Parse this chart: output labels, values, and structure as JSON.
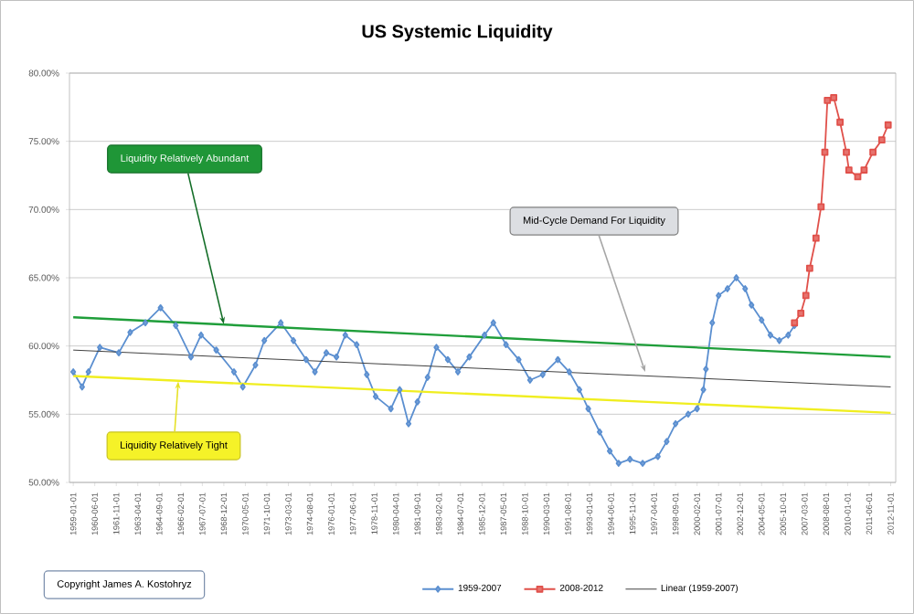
{
  "chart_data": {
    "type": "line",
    "title": "US Systemic Liquidity",
    "series": [
      {
        "name": "1959-2007",
        "color": "#5b8fd0",
        "marker": "diamond",
        "x": [
          "1959-01",
          "1959-08",
          "1960-01",
          "1960-10",
          "1962-01",
          "1962-10",
          "1963-10",
          "1964-10",
          "1965-10",
          "1966-10",
          "1967-06",
          "1968-06",
          "1969-08",
          "1970-03",
          "1971-01",
          "1971-08",
          "1972-09",
          "1973-07",
          "1974-05",
          "1974-12",
          "1975-09",
          "1976-05",
          "1976-12",
          "1977-09",
          "1978-05",
          "1978-12",
          "1979-12",
          "1980-07",
          "1981-02",
          "1981-09",
          "1982-05",
          "1982-12",
          "1983-09",
          "1984-05",
          "1985-02",
          "1986-02",
          "1986-09",
          "1987-07",
          "1988-05",
          "1989-02",
          "1989-12",
          "1990-12",
          "1991-09",
          "1992-05",
          "1992-12",
          "1993-09",
          "1994-05",
          "1994-12",
          "1995-09",
          "1996-07",
          "1997-07",
          "1998-02",
          "1998-09",
          "1999-07",
          "2000-02",
          "2000-07",
          "2000-09",
          "2001-02",
          "2001-07",
          "2002-02",
          "2002-09",
          "2003-04",
          "2003-09",
          "2004-05",
          "2004-12",
          "2005-07",
          "2006-02",
          "2006-07"
        ],
        "values": [
          58.1,
          57.0,
          58.1,
          59.9,
          59.5,
          61.0,
          61.7,
          62.8,
          61.5,
          59.2,
          60.8,
          59.7,
          58.1,
          57.0,
          58.6,
          60.4,
          61.7,
          60.4,
          59.0,
          58.1,
          59.5,
          59.2,
          60.8,
          60.1,
          57.9,
          56.3,
          55.4,
          56.8,
          54.3,
          55.9,
          57.7,
          59.9,
          59.0,
          58.1,
          59.2,
          60.8,
          61.7,
          60.1,
          59.0,
          57.5,
          57.9,
          59.0,
          58.1,
          56.8,
          55.4,
          53.7,
          52.3,
          51.4,
          51.7,
          51.4,
          51.9,
          53.0,
          54.3,
          55.0,
          55.4,
          56.8,
          58.3,
          61.7,
          63.7,
          64.2,
          65.0,
          64.2,
          63.0,
          61.9,
          60.8,
          60.4,
          60.8,
          61.5
        ]
      },
      {
        "name": "2008-2012",
        "color": "#e0504a",
        "marker": "square",
        "x": [
          "2006-07",
          "2006-12",
          "2007-04",
          "2007-07",
          "2007-12",
          "2008-04",
          "2008-07",
          "2008-09",
          "2009-02",
          "2009-07",
          "2009-12",
          "2010-02",
          "2010-09",
          "2011-02",
          "2011-09",
          "2012-04",
          "2012-09"
        ],
        "values": [
          61.7,
          62.4,
          63.7,
          65.7,
          67.9,
          70.2,
          74.2,
          78.0,
          78.2,
          76.4,
          74.2,
          72.9,
          72.4,
          72.9,
          74.2,
          75.1,
          76.2
        ]
      },
      {
        "name": "Linear (1959-2007)",
        "color": "#404040",
        "marker": "none",
        "x": [
          "1959-01",
          "2012-11"
        ],
        "values": [
          59.7,
          57.0
        ]
      },
      {
        "color": "#1f9e3a",
        "marker": "none",
        "x": [
          "1959-01",
          "2012-11"
        ],
        "values": [
          62.1,
          59.2
        ]
      },
      {
        "color": "#f0ee20",
        "marker": "none",
        "x": [
          "1959-01",
          "2012-11"
        ],
        "values": [
          57.8,
          55.1
        ]
      }
    ],
    "xlim": [
      "1958-10-01",
      "2013-03-01"
    ],
    "xticks": [
      {
        "value": "1959-01-01",
        "label": "1959-01-01"
      },
      {
        "value": "1960-06-01",
        "label": "1960-06-01"
      },
      {
        "value": "1961-11-01",
        "label": "1961-11-01"
      },
      {
        "value": "1963-04-01",
        "label": "1963-04-01"
      },
      {
        "value": "1964-09-01",
        "label": "1964-09-01"
      },
      {
        "value": "1966-02-01",
        "label": "1966-02-01"
      },
      {
        "value": "1967-07-01",
        "label": "1967-07-01"
      },
      {
        "value": "1968-12-01",
        "label": "1968-12-01"
      },
      {
        "value": "1970-05-01",
        "label": "1970-05-01"
      },
      {
        "value": "1971-10-01",
        "label": "1971-10-01"
      },
      {
        "value": "1973-03-01",
        "label": "1973-03-01"
      },
      {
        "value": "1974-08-01",
        "label": "1974-08-01"
      },
      {
        "value": "1976-01-01",
        "label": "1976-01-01"
      },
      {
        "value": "1977-06-01",
        "label": "1977-06-01"
      },
      {
        "value": "1978-11-01",
        "label": "1978-11-01"
      },
      {
        "value": "1980-04-01",
        "label": "1980-04-01"
      },
      {
        "value": "1981-09-01",
        "label": "1981-09-01"
      },
      {
        "value": "1983-02-01",
        "label": "1983-02-01"
      },
      {
        "value": "1984-07-01",
        "label": "1984-07-01"
      },
      {
        "value": "1985-12-01",
        "label": "1985-12-01"
      },
      {
        "value": "1987-05-01",
        "label": "1987-05-01"
      },
      {
        "value": "1988-10-01",
        "label": "1988-10-01"
      },
      {
        "value": "1990-03-01",
        "label": "1990-03-01"
      },
      {
        "value": "1991-08-01",
        "label": "1991-08-01"
      },
      {
        "value": "1993-01-01",
        "label": "1993-01-01"
      },
      {
        "value": "1994-06-01",
        "label": "1994-06-01"
      },
      {
        "value": "1995-11-01",
        "label": "1995-11-01"
      },
      {
        "value": "1997-04-01",
        "label": "1997-04-01"
      },
      {
        "value": "1998-09-01",
        "label": "1998-09-01"
      },
      {
        "value": "2000-02-01",
        "label": "2000-02-01"
      },
      {
        "value": "2001-07-01",
        "label": "2001-07-01"
      },
      {
        "value": "2002-12-01",
        "label": "2002-12-01"
      },
      {
        "value": "2004-05-01",
        "label": "2004-05-01"
      },
      {
        "value": "2005-10-01",
        "label": "2005-10-01"
      },
      {
        "value": "2007-03-01",
        "label": "2007-03-01"
      },
      {
        "value": "2008-08-01",
        "label": "2008-08-01"
      },
      {
        "value": "2010-01-01",
        "label": "2010-01-01"
      },
      {
        "value": "2011-06-01",
        "label": "2011-06-01"
      },
      {
        "value": "2012-11-01",
        "label": "2012-11-01"
      }
    ],
    "ylim": [
      50,
      80
    ],
    "yticks": [
      {
        "value": 50,
        "label": "50.00%"
      },
      {
        "value": 55,
        "label": "55.00%"
      },
      {
        "value": 60,
        "label": "60.00%"
      },
      {
        "value": 65,
        "label": "65.00%"
      },
      {
        "value": 70,
        "label": "70.00%"
      },
      {
        "value": 75,
        "label": "75.00%"
      },
      {
        "value": 80,
        "label": "80.00%"
      }
    ],
    "grid": "y",
    "legend": "bottom",
    "annotations": [
      {
        "text": "Liquidity Relatively Abundant",
        "x": "1968-12",
        "y": 61.6
      },
      {
        "text": "Liquidity Relatively Tight",
        "x": "1965-12",
        "y": 57.4
      },
      {
        "text": "Mid-Cycle Demand For Liquidity",
        "x": "1996-09",
        "y": 58.1
      },
      "Copyright James A. Kostohryz"
    ]
  }
}
